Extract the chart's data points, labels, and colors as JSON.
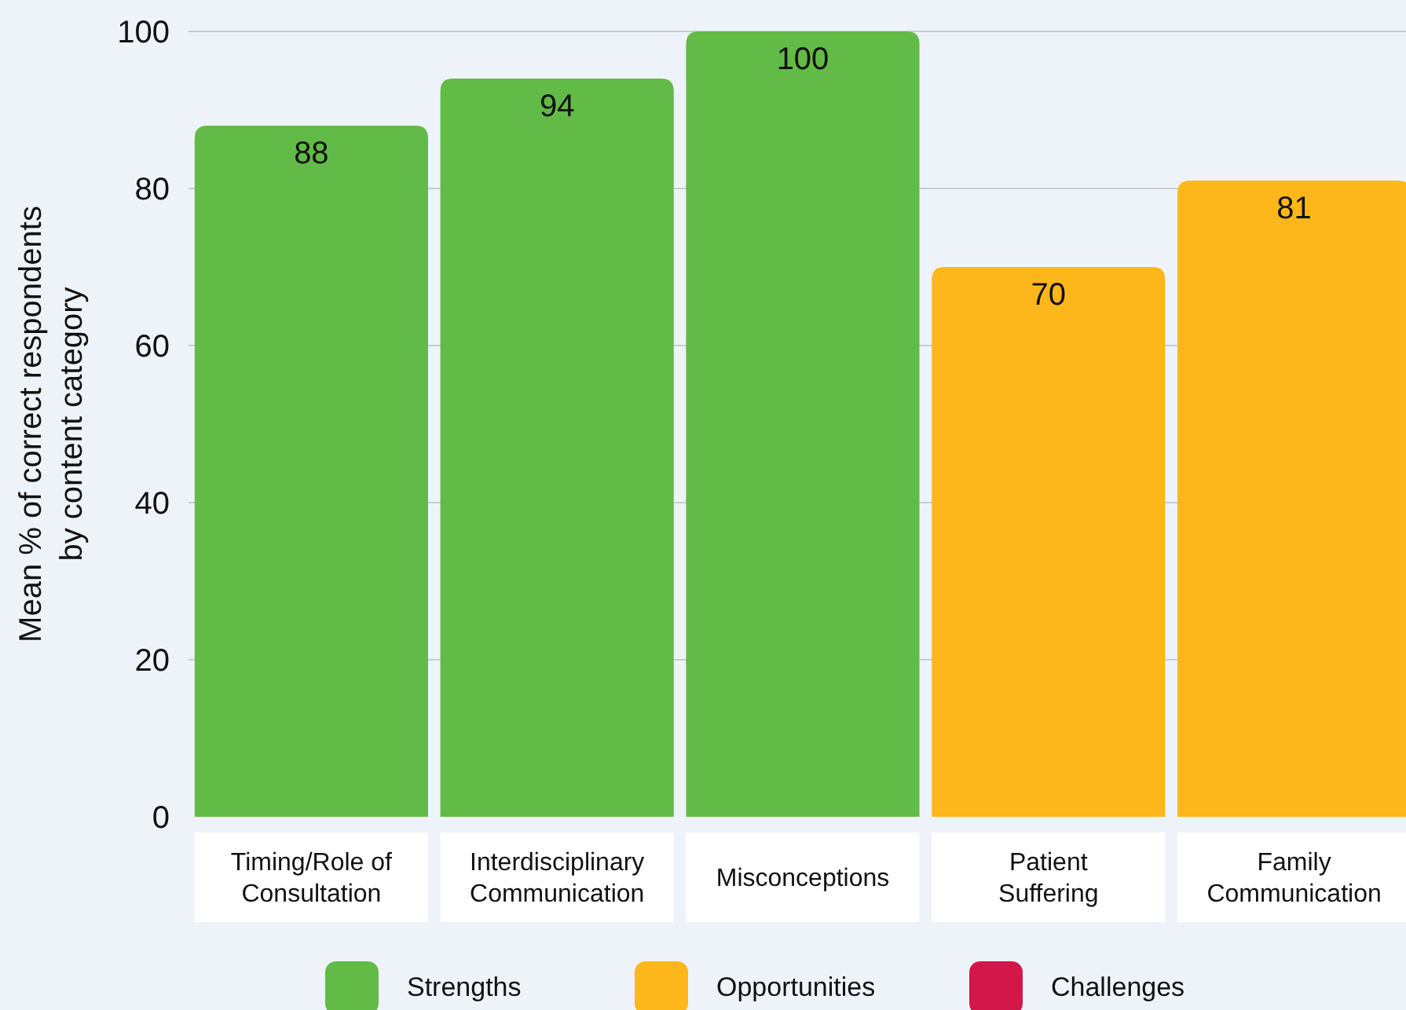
{
  "chart_data": {
    "type": "bar",
    "ylabel": "Mean % of correct respondents by content category",
    "categories": [
      "Timing/Role of Consultation",
      "Interdisciplinary Communication",
      "Misconceptions",
      "Patient Suffering",
      "Family Communication"
    ],
    "series": [
      {
        "name": "Strengths",
        "color": "#62bb46",
        "values": [
          88,
          94,
          100,
          null,
          null
        ]
      },
      {
        "name": "Opportunities",
        "color": "#fdb71a",
        "values": [
          null,
          null,
          null,
          70,
          81
        ]
      },
      {
        "name": "Challenges",
        "color": "#d4174a",
        "values": [
          null,
          null,
          null,
          null,
          null
        ]
      }
    ],
    "stacked": true,
    "ylim": [
      0,
      100
    ],
    "yticks": [
      0,
      20,
      40,
      60,
      80,
      100
    ],
    "grid": "y",
    "data_labels": true,
    "legend": "bottom"
  }
}
